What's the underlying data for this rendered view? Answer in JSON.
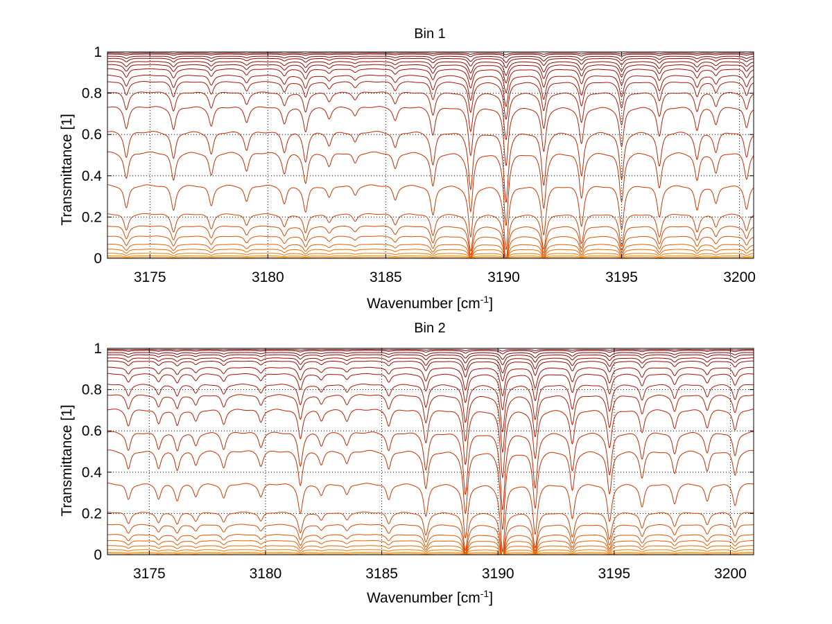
{
  "chart_data": [
    {
      "type": "line",
      "title": "Bin 1",
      "xlabel": "Wavenumber [cm",
      "xlabel_sup": "-1",
      "xlabel_end": "]",
      "ylabel": "Transmittance [1]",
      "xlim": [
        3173.2,
        3200.6
      ],
      "ylim": [
        0,
        1
      ],
      "xticks": [
        3175,
        3180,
        3185,
        3190,
        3195,
        3200
      ],
      "yticks": [
        0,
        0.2,
        0.4,
        0.6,
        0.8,
        1
      ],
      "grid": true,
      "legend": "none",
      "baseline_levels": [
        0.995,
        0.99,
        0.98,
        0.97,
        0.955,
        0.94,
        0.92,
        0.89,
        0.86,
        0.81,
        0.74,
        0.62,
        0.52,
        0.36,
        0.22,
        0.16,
        0.11,
        0.07,
        0.045,
        0.025,
        0.012,
        0.005
      ],
      "absorption_lines": [
        {
          "x": 3174.0,
          "depth": 0.28
        },
        {
          "x": 3176.0,
          "depth": 0.3
        },
        {
          "x": 3177.6,
          "depth": 0.25
        },
        {
          "x": 3179.1,
          "depth": 0.2
        },
        {
          "x": 3180.7,
          "depth": 0.22
        },
        {
          "x": 3181.6,
          "depth": 0.32
        },
        {
          "x": 3182.6,
          "depth": 0.15
        },
        {
          "x": 3183.7,
          "depth": 0.12
        },
        {
          "x": 3185.4,
          "depth": 0.18
        },
        {
          "x": 3187.0,
          "depth": 0.36
        },
        {
          "x": 3188.6,
          "depth": 0.62
        },
        {
          "x": 3190.1,
          "depth": 0.76
        },
        {
          "x": 3191.7,
          "depth": 0.58
        },
        {
          "x": 3193.3,
          "depth": 0.48
        },
        {
          "x": 3195.0,
          "depth": 0.52
        },
        {
          "x": 3196.6,
          "depth": 0.38
        },
        {
          "x": 3198.2,
          "depth": 0.3
        },
        {
          "x": 3199.0,
          "depth": 0.22
        },
        {
          "x": 3200.3,
          "depth": 0.28
        }
      ]
    },
    {
      "type": "line",
      "title": "Bin 2",
      "xlabel": "Wavenumber [cm",
      "xlabel_sup": "-1",
      "xlabel_end": "]",
      "ylabel": "Transmittance [1]",
      "xlim": [
        3173.2,
        3201.0
      ],
      "ylim": [
        0,
        1
      ],
      "xticks": [
        3175,
        3180,
        3185,
        3190,
        3195,
        3200
      ],
      "yticks": [
        0,
        0.2,
        0.4,
        0.6,
        0.8,
        1
      ],
      "grid": true,
      "legend": "none",
      "baseline_levels": [
        0.995,
        0.99,
        0.98,
        0.97,
        0.955,
        0.94,
        0.91,
        0.88,
        0.83,
        0.78,
        0.71,
        0.6,
        0.51,
        0.35,
        0.21,
        0.15,
        0.1,
        0.07,
        0.045,
        0.025,
        0.012,
        0.005
      ],
      "absorption_lines": [
        {
          "x": 3174.1,
          "depth": 0.2
        },
        {
          "x": 3175.4,
          "depth": 0.18
        },
        {
          "x": 3176.2,
          "depth": 0.2
        },
        {
          "x": 3177.0,
          "depth": 0.15
        },
        {
          "x": 3178.2,
          "depth": 0.18
        },
        {
          "x": 3179.8,
          "depth": 0.16
        },
        {
          "x": 3181.5,
          "depth": 0.36
        },
        {
          "x": 3182.4,
          "depth": 0.14
        },
        {
          "x": 3183.5,
          "depth": 0.14
        },
        {
          "x": 3185.3,
          "depth": 0.2
        },
        {
          "x": 3186.9,
          "depth": 0.4
        },
        {
          "x": 3188.6,
          "depth": 0.66
        },
        {
          "x": 3190.2,
          "depth": 0.82
        },
        {
          "x": 3191.6,
          "depth": 0.6
        },
        {
          "x": 3193.2,
          "depth": 0.42
        },
        {
          "x": 3194.8,
          "depth": 0.46
        },
        {
          "x": 3196.2,
          "depth": 0.28
        },
        {
          "x": 3197.6,
          "depth": 0.24
        },
        {
          "x": 3199.0,
          "depth": 0.22
        },
        {
          "x": 3200.2,
          "depth": 0.26
        }
      ]
    }
  ]
}
